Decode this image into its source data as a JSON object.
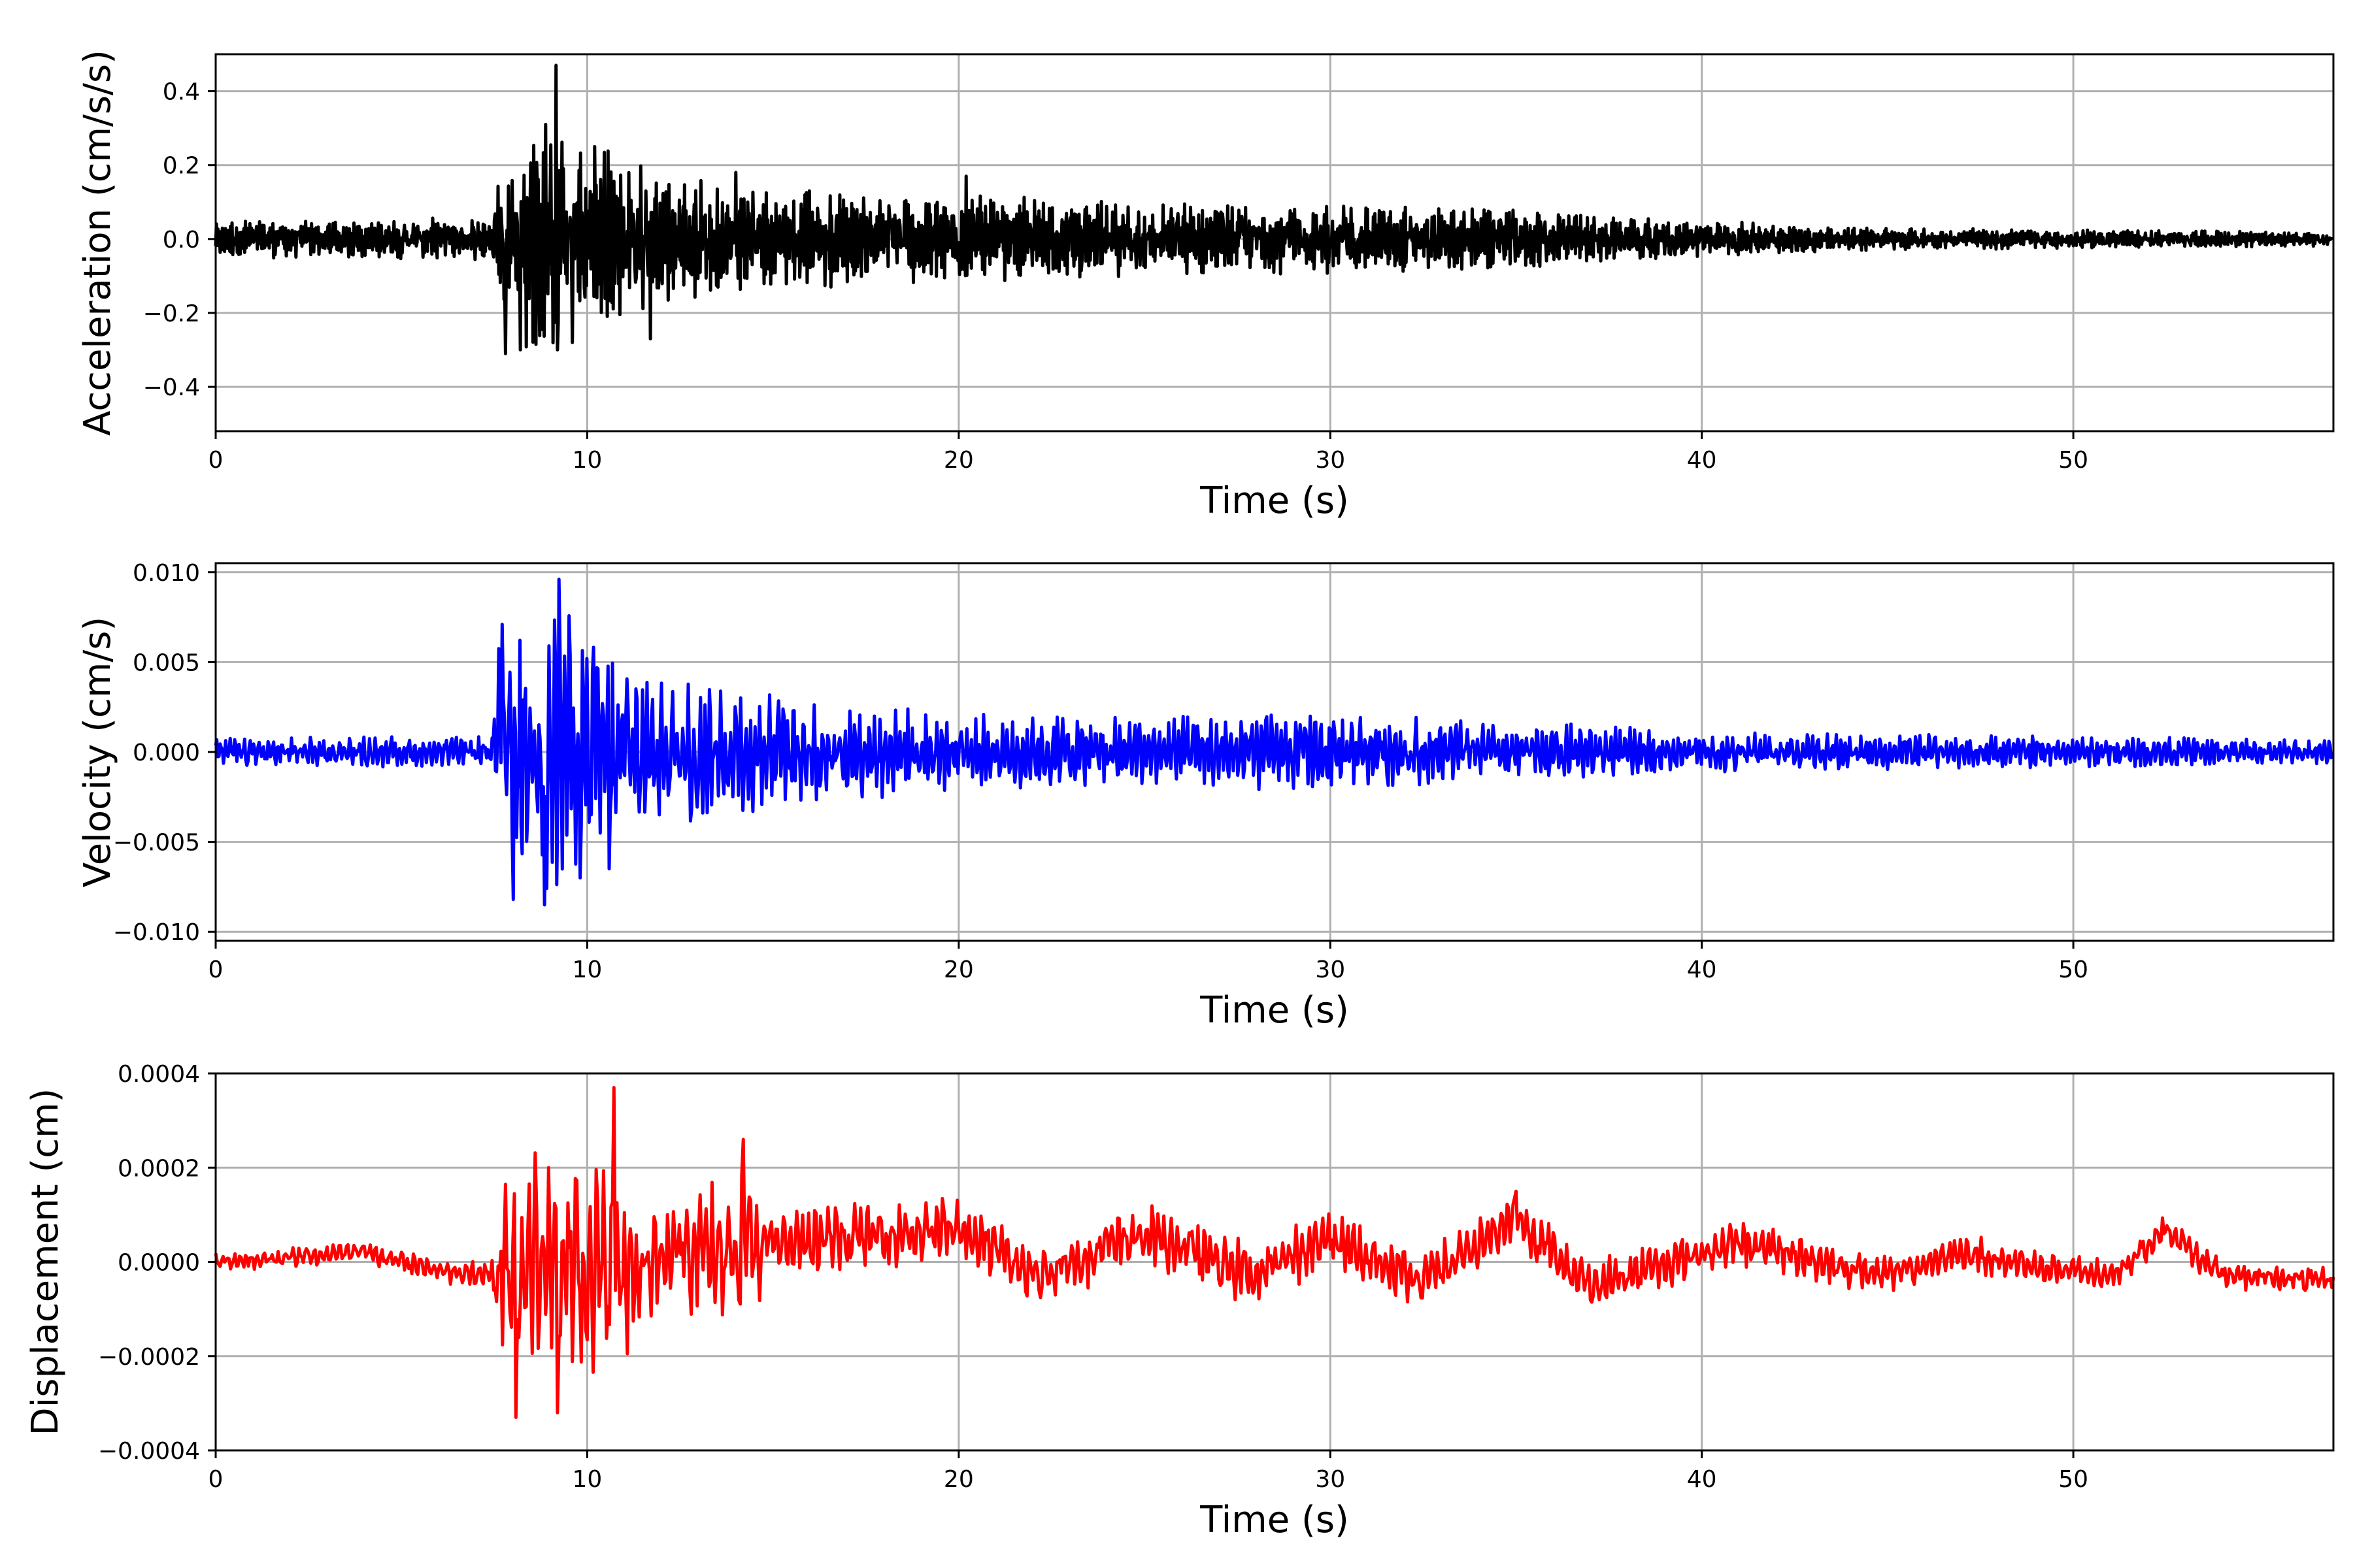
{
  "colors": {
    "acceleration": "#000000",
    "velocity": "#0000ff",
    "displacement": "#ff0000",
    "grid": "#b0b0b0"
  },
  "chart_data": [
    {
      "type": "line",
      "xlabel": "Time (s)",
      "ylabel": "Acceleration (cm/s/s)",
      "xlim": [
        0,
        57
      ],
      "ylim": [
        -0.52,
        0.5
      ],
      "xticks": [
        0,
        10,
        20,
        30,
        40,
        50
      ],
      "xtick_labels": [
        "0",
        "10",
        "20",
        "30",
        "40",
        "50"
      ],
      "yticks": [
        -0.4,
        -0.2,
        0.0,
        0.2,
        0.4
      ],
      "ytick_labels": [
        "−0.4",
        "−0.2",
        "0.0",
        "0.2",
        "0.4"
      ],
      "grid": true,
      "series": [
        {
          "color": "#000000",
          "envelope": [
            [
              0,
              0.05
            ],
            [
              7.4,
              0.06
            ],
            [
              7.6,
              0.2
            ],
            [
              8.0,
              0.25
            ],
            [
              9.0,
              0.4
            ],
            [
              9.5,
              0.3
            ],
            [
              10.5,
              0.25
            ],
            [
              12,
              0.18
            ],
            [
              14,
              0.14
            ],
            [
              20,
              0.12
            ],
            [
              25,
              0.1
            ],
            [
              33,
              0.09
            ],
            [
              37,
              0.07
            ],
            [
              40,
              0.05
            ],
            [
              45,
              0.03
            ],
            [
              57,
              0.02
            ]
          ],
          "peaks": [
            [
              7.8,
              -0.31
            ],
            [
              8.2,
              -0.3
            ],
            [
              9.15,
              0.47
            ],
            [
              9.2,
              -0.3
            ],
            [
              9.6,
              -0.28
            ],
            [
              10.2,
              0.25
            ],
            [
              11.7,
              -0.27
            ],
            [
              14.0,
              0.18
            ],
            [
              20.2,
              0.17
            ]
          ]
        }
      ]
    },
    {
      "type": "line",
      "xlabel": "Time (s)",
      "ylabel": "Velocity (cm/s)",
      "xlim": [
        0,
        57
      ],
      "ylim": [
        -0.0105,
        0.0105
      ],
      "xticks": [
        0,
        10,
        20,
        30,
        40,
        50
      ],
      "xtick_labels": [
        "0",
        "10",
        "20",
        "30",
        "40",
        "50"
      ],
      "yticks": [
        -0.01,
        -0.005,
        0.0,
        0.005,
        0.01
      ],
      "ytick_labels": [
        "−0.010",
        "−0.005",
        "0.000",
        "0.005",
        "0.010"
      ],
      "grid": true,
      "series": [
        {
          "color": "#0000ff",
          "envelope": [
            [
              0,
              0.0008
            ],
            [
              7.4,
              0.0009
            ],
            [
              7.6,
              0.006
            ],
            [
              8.5,
              0.007
            ],
            [
              9.3,
              0.0085
            ],
            [
              10.5,
              0.006
            ],
            [
              12,
              0.004
            ],
            [
              14,
              0.004
            ],
            [
              16,
              0.003
            ],
            [
              20,
              0.0022
            ],
            [
              25,
              0.002
            ],
            [
              30,
              0.0022
            ],
            [
              35,
              0.0018
            ],
            [
              40,
              0.0012
            ],
            [
              45,
              0.001
            ],
            [
              50,
              0.0009
            ],
            [
              57,
              0.0007
            ]
          ],
          "peaks": [
            [
              7.7,
              0.0071
            ],
            [
              8.0,
              -0.0082
            ],
            [
              8.85,
              -0.0085
            ],
            [
              9.25,
              0.0096
            ],
            [
              10.6,
              0.0075
            ],
            [
              10.6,
              -0.0065
            ]
          ]
        }
      ]
    },
    {
      "type": "line",
      "xlabel": "Time (s)",
      "ylabel": "Displacement (cm)",
      "xlim": [
        0,
        57
      ],
      "ylim": [
        -0.0004,
        0.0004
      ],
      "xticks": [
        0,
        10,
        20,
        30,
        40,
        50
      ],
      "xtick_labels": [
        "0",
        "10",
        "20",
        "30",
        "40",
        "50"
      ],
      "yticks": [
        -0.0004,
        -0.0002,
        0.0,
        0.0002,
        0.0004
      ],
      "ytick_labels": [
        "−0.0004",
        "−0.0002",
        "0.0000",
        "0.0002",
        "0.0004"
      ],
      "grid": true,
      "series": [
        {
          "color": "#ff0000",
          "envelope": [
            [
              0,
              2e-05
            ],
            [
              7.4,
              3e-05
            ],
            [
              7.7,
              0.0002
            ],
            [
              8.5,
              0.00025
            ],
            [
              10.5,
              0.00028
            ],
            [
              12,
              0.0001
            ],
            [
              14,
              0.0002
            ],
            [
              15,
              8e-05
            ],
            [
              20,
              7e-05
            ],
            [
              30,
              7e-05
            ],
            [
              40,
              5e-05
            ],
            [
              57,
              3e-05
            ]
          ],
          "baseline": [
            [
              0,
              0.0
            ],
            [
              4,
              2e-05
            ],
            [
              6,
              -2e-05
            ],
            [
              7.5,
              -3e-05
            ],
            [
              10,
              0.0
            ],
            [
              20,
              7e-05
            ],
            [
              22,
              -3e-05
            ],
            [
              25,
              6e-05
            ],
            [
              28,
              -3e-05
            ],
            [
              30,
              5e-05
            ],
            [
              32.5,
              -4e-05
            ],
            [
              35,
              9e-05
            ],
            [
              37,
              -5e-05
            ],
            [
              41,
              4e-05
            ],
            [
              45,
              -3e-05
            ],
            [
              47,
              2e-05
            ],
            [
              49,
              -1e-05
            ],
            [
              51,
              -3e-05
            ],
            [
              52.5,
              7e-05
            ],
            [
              54,
              -3e-05
            ],
            [
              57,
              -4e-05
            ]
          ],
          "peaks": [
            [
              8.1,
              -0.00033
            ],
            [
              9.2,
              -0.00032
            ],
            [
              10.7,
              0.00037
            ],
            [
              14.2,
              0.00026
            ],
            [
              35.0,
              0.00015
            ]
          ]
        }
      ]
    }
  ]
}
